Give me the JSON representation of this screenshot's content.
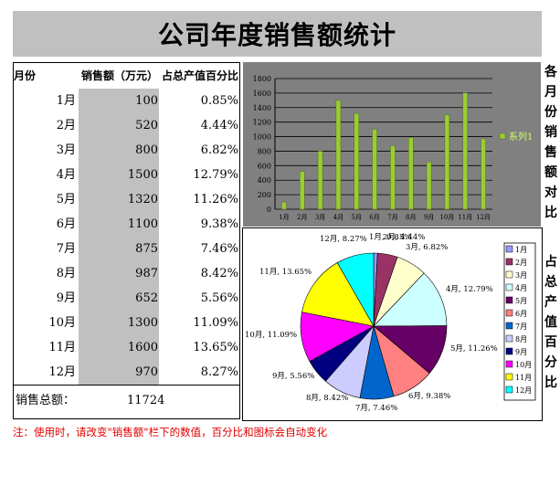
{
  "title": "公司年度销售额统计",
  "table": {
    "headers": {
      "month": "月份",
      "sales": "销售额（万元）",
      "pct": "占总产值百分比"
    },
    "rows": [
      {
        "month": "1月",
        "sales": "100",
        "pct": "0.85%"
      },
      {
        "month": "2月",
        "sales": "520",
        "pct": "4.44%"
      },
      {
        "month": "3月",
        "sales": "800",
        "pct": "6.82%"
      },
      {
        "month": "4月",
        "sales": "1500",
        "pct": "12.79%"
      },
      {
        "month": "5月",
        "sales": "1320",
        "pct": "11.26%"
      },
      {
        "month": "6月",
        "sales": "1100",
        "pct": "9.38%"
      },
      {
        "month": "7月",
        "sales": "875",
        "pct": "7.46%"
      },
      {
        "month": "8月",
        "sales": "987",
        "pct": "8.42%"
      },
      {
        "month": "9月",
        "sales": "652",
        "pct": "5.56%"
      },
      {
        "month": "10月",
        "sales": "1300",
        "pct": "11.09%"
      },
      {
        "month": "11月",
        "sales": "1600",
        "pct": "13.65%"
      },
      {
        "month": "12月",
        "sales": "970",
        "pct": "8.27%"
      }
    ],
    "total_label": "销售总额：",
    "total_value": "11724"
  },
  "side_labels": {
    "bar": "各月份销售额对比",
    "pie": "占总产值百分比"
  },
  "note": "注：使用时，请改变\"销售额\"栏下的数值，百分比和图标会自动变化",
  "colors": {
    "title_band": "#c0c0c0",
    "bar_fill": "#9acd32",
    "bar_panel": "#808080",
    "note": "#e00000"
  },
  "chart_data": [
    {
      "type": "bar",
      "categories": [
        "1月",
        "2月",
        "3月",
        "4月",
        "5月",
        "6月",
        "7月",
        "8月",
        "9月",
        "10月",
        "11月",
        "12月"
      ],
      "series": [
        {
          "name": "系列1",
          "values": [
            100,
            520,
            800,
            1500,
            1320,
            1100,
            875,
            987,
            652,
            1300,
            1600,
            970
          ]
        }
      ],
      "ylim": [
        0,
        1800
      ],
      "yticks": [
        0,
        200,
        400,
        600,
        800,
        1000,
        1200,
        1400,
        1600,
        1800
      ],
      "grid": true,
      "legend": "right"
    },
    {
      "type": "pie",
      "categories": [
        "1月",
        "2月",
        "3月",
        "4月",
        "5月",
        "6月",
        "7月",
        "8月",
        "9月",
        "10月",
        "11月",
        "12月"
      ],
      "values": [
        100,
        520,
        800,
        1500,
        1320,
        1100,
        875,
        987,
        652,
        1300,
        1600,
        970
      ],
      "labels": [
        "1月, 0.85%",
        "2月, 4.44%",
        "3月, 6.82%",
        "4月, 12.79%",
        "5月, 11.26%",
        "6月, 9.38%",
        "7月, 7.46%",
        "8月, 8.42%",
        "9月, 5.56%",
        "10月, 11.09%",
        "11月, 13.65%",
        "12月, 8.27%"
      ],
      "colors": [
        "#9999ff",
        "#993366",
        "#ffffcc",
        "#ccffff",
        "#660066",
        "#ff8080",
        "#0066cc",
        "#ccccff",
        "#000080",
        "#ff00ff",
        "#ffff00",
        "#00ffff"
      ],
      "legend": "right"
    }
  ]
}
